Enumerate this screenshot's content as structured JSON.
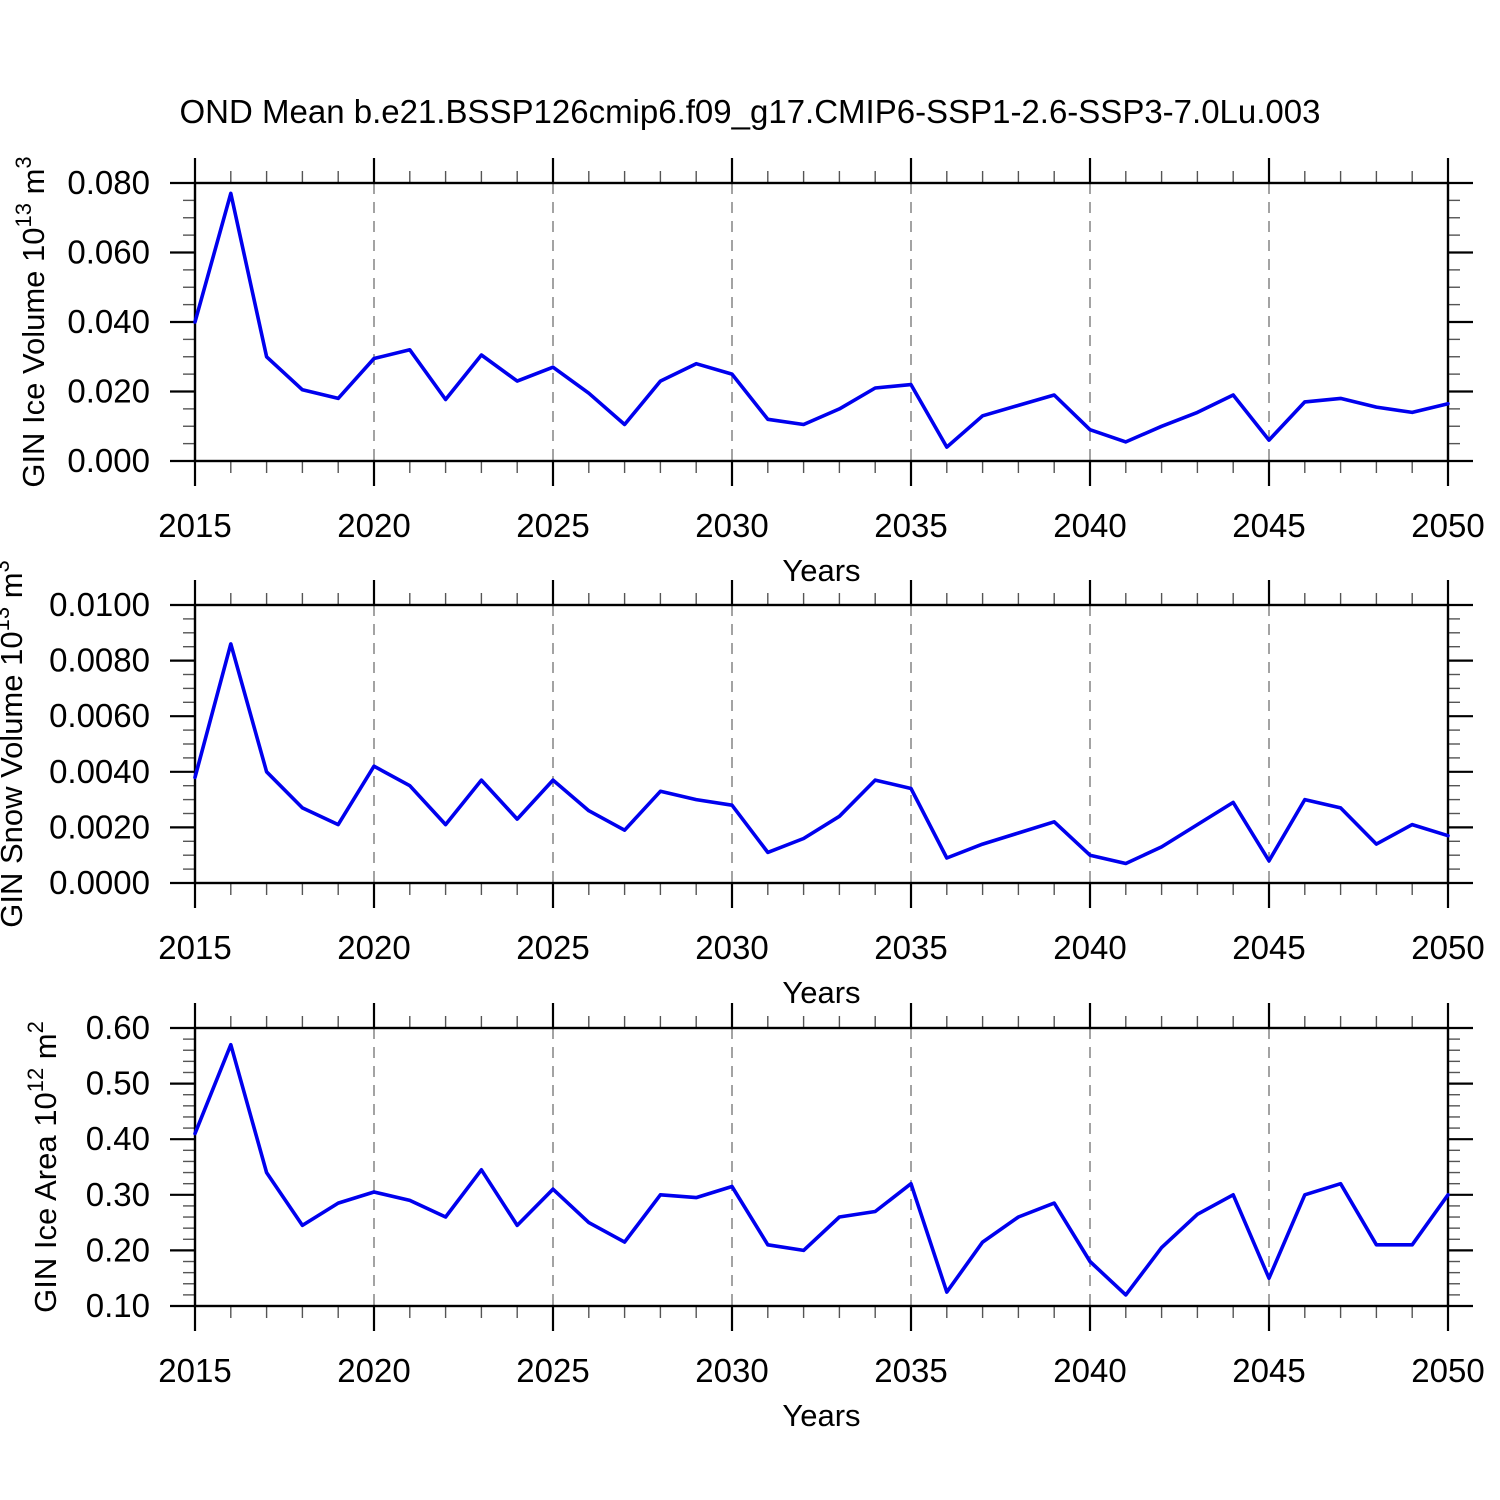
{
  "title": "OND Mean b.e21.BSSP126cmip6.f09_g17.CMIP6-SSP1-2.6-SSP3-7.0Lu.003",
  "colors": {
    "line": "#0000EE",
    "grid": "#999999",
    "axis": "#000000",
    "background": "#FFFFFF"
  },
  "chart_data": [
    {
      "type": "line",
      "title": "",
      "xlabel": "Years",
      "ylabel": "GIN Ice Volume 10^13 m^3",
      "ylabel_parts": [
        {
          "text": "GIN Ice Volume 10"
        },
        {
          "text": "13",
          "sup": true
        },
        {
          "text": " m"
        },
        {
          "text": "3",
          "sup": true
        }
      ],
      "x": [
        2015,
        2016,
        2017,
        2018,
        2019,
        2020,
        2021,
        2022,
        2023,
        2024,
        2025,
        2026,
        2027,
        2028,
        2029,
        2030,
        2031,
        2032,
        2033,
        2034,
        2035,
        2036,
        2037,
        2038,
        2039,
        2040,
        2041,
        2042,
        2043,
        2044,
        2045,
        2046,
        2047,
        2048,
        2049,
        2050
      ],
      "values": [
        0.04,
        0.077,
        0.03,
        0.0205,
        0.018,
        0.0295,
        0.032,
        0.0177,
        0.0305,
        0.023,
        0.027,
        0.0195,
        0.0105,
        0.023,
        0.028,
        0.025,
        0.012,
        0.0105,
        0.015,
        0.021,
        0.022,
        0.004,
        0.013,
        0.016,
        0.019,
        0.009,
        0.0055,
        0.01,
        0.014,
        0.019,
        0.006,
        0.017,
        0.018,
        0.0155,
        0.014,
        0.0165
      ],
      "xlim": [
        2015,
        2050
      ],
      "ylim": [
        0.0,
        0.08
      ],
      "yticks": [
        0.0,
        0.02,
        0.04,
        0.06,
        0.08
      ],
      "ytick_labels": [
        "0.000",
        "0.020",
        "0.040",
        "0.060",
        "0.080"
      ],
      "yminor_step": 0.005,
      "xticks": [
        2015,
        2020,
        2025,
        2030,
        2035,
        2040,
        2045,
        2050
      ],
      "xtick_labels": [
        "2015",
        "2020",
        "2025",
        "2030",
        "2035",
        "2040",
        "2045",
        "2050"
      ],
      "xminor_step": 1,
      "grid_x": [
        2020,
        2025,
        2030,
        2035,
        2040,
        2045
      ],
      "grid_style": "vertical-dashed",
      "legend": "none"
    },
    {
      "type": "line",
      "title": "",
      "xlabel": "Years",
      "ylabel": "GIN Snow Volume 10^13 m^3",
      "ylabel_parts": [
        {
          "text": "GIN Snow Volume 10"
        },
        {
          "text": "13",
          "sup": true
        },
        {
          "text": " m"
        },
        {
          "text": "3",
          "sup": true
        }
      ],
      "x": [
        2015,
        2016,
        2017,
        2018,
        2019,
        2020,
        2021,
        2022,
        2023,
        2024,
        2025,
        2026,
        2027,
        2028,
        2029,
        2030,
        2031,
        2032,
        2033,
        2034,
        2035,
        2036,
        2037,
        2038,
        2039,
        2040,
        2041,
        2042,
        2043,
        2044,
        2045,
        2046,
        2047,
        2048,
        2049,
        2050
      ],
      "values": [
        0.0038,
        0.0086,
        0.004,
        0.0027,
        0.0021,
        0.0042,
        0.0035,
        0.0021,
        0.0037,
        0.0023,
        0.0037,
        0.0026,
        0.0019,
        0.0033,
        0.003,
        0.0028,
        0.0011,
        0.0016,
        0.0024,
        0.0037,
        0.0034,
        0.0009,
        0.0014,
        0.0018,
        0.0022,
        0.001,
        0.0007,
        0.0013,
        0.0021,
        0.0029,
        0.0008,
        0.003,
        0.0027,
        0.0014,
        0.0021,
        0.0017
      ],
      "xlim": [
        2015,
        2050
      ],
      "ylim": [
        0.0,
        0.01
      ],
      "yticks": [
        0.0,
        0.002,
        0.004,
        0.006,
        0.008,
        0.01
      ],
      "ytick_labels": [
        "0.0000",
        "0.0020",
        "0.0040",
        "0.0060",
        "0.0080",
        "0.0100"
      ],
      "yminor_step": 0.0005,
      "xticks": [
        2015,
        2020,
        2025,
        2030,
        2035,
        2040,
        2045,
        2050
      ],
      "xtick_labels": [
        "2015",
        "2020",
        "2025",
        "2030",
        "2035",
        "2040",
        "2045",
        "2050"
      ],
      "xminor_step": 1,
      "grid_x": [
        2020,
        2025,
        2030,
        2035,
        2040,
        2045
      ],
      "grid_style": "vertical-dashed",
      "legend": "none"
    },
    {
      "type": "line",
      "title": "",
      "xlabel": "Years",
      "ylabel": "GIN Ice Area 10^12 m^2",
      "ylabel_parts": [
        {
          "text": "GIN Ice Area 10"
        },
        {
          "text": "12",
          "sup": true
        },
        {
          "text": " m"
        },
        {
          "text": "2",
          "sup": true
        }
      ],
      "x": [
        2015,
        2016,
        2017,
        2018,
        2019,
        2020,
        2021,
        2022,
        2023,
        2024,
        2025,
        2026,
        2027,
        2028,
        2029,
        2030,
        2031,
        2032,
        2033,
        2034,
        2035,
        2036,
        2037,
        2038,
        2039,
        2040,
        2041,
        2042,
        2043,
        2044,
        2045,
        2046,
        2047,
        2048,
        2049,
        2050
      ],
      "values": [
        0.41,
        0.57,
        0.34,
        0.245,
        0.285,
        0.305,
        0.29,
        0.26,
        0.345,
        0.245,
        0.31,
        0.25,
        0.215,
        0.3,
        0.295,
        0.315,
        0.21,
        0.2,
        0.26,
        0.27,
        0.32,
        0.125,
        0.215,
        0.26,
        0.285,
        0.18,
        0.12,
        0.205,
        0.265,
        0.3,
        0.15,
        0.3,
        0.32,
        0.21,
        0.21,
        0.3
      ],
      "xlim": [
        2015,
        2050
      ],
      "ylim": [
        0.1,
        0.6
      ],
      "yticks": [
        0.1,
        0.2,
        0.3,
        0.4,
        0.5,
        0.6
      ],
      "ytick_labels": [
        "0.10",
        "0.20",
        "0.30",
        "0.40",
        "0.50",
        "0.60"
      ],
      "yminor_step": 0.02,
      "xticks": [
        2015,
        2020,
        2025,
        2030,
        2035,
        2040,
        2045,
        2050
      ],
      "xtick_labels": [
        "2015",
        "2020",
        "2025",
        "2030",
        "2035",
        "2040",
        "2045",
        "2050"
      ],
      "xminor_step": 1,
      "grid_x": [
        2020,
        2025,
        2030,
        2035,
        2040,
        2045
      ],
      "grid_style": "vertical-dashed",
      "legend": "none"
    }
  ]
}
